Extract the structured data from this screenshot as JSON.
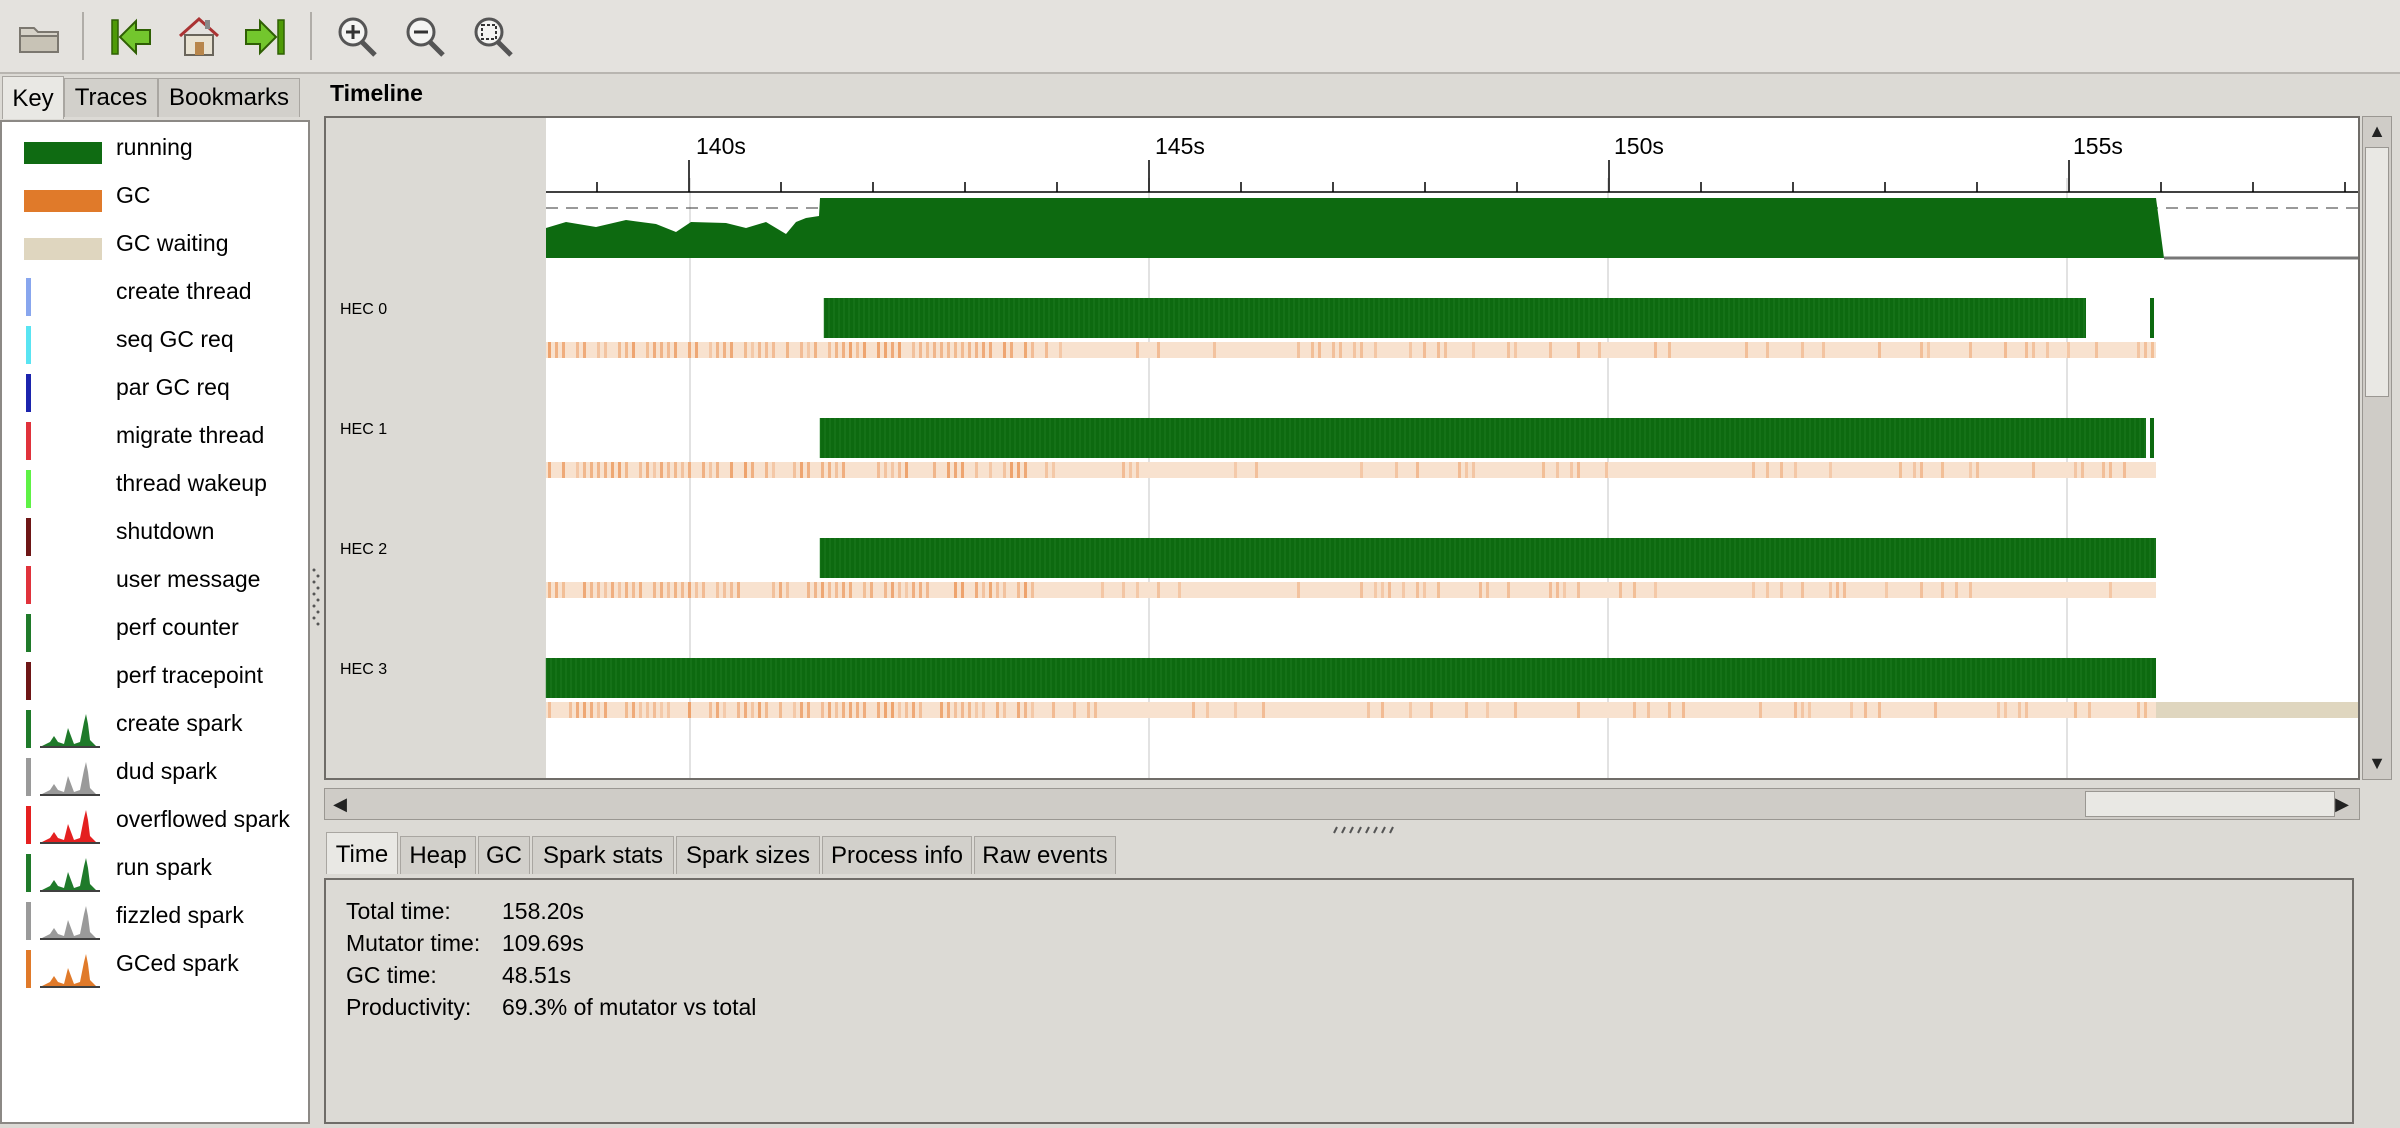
{
  "toolbar": {
    "buttons": [
      {
        "name": "open-file",
        "icon": "folder-icon"
      },
      {
        "name": "jump-start",
        "icon": "jump-start-icon"
      },
      {
        "name": "home",
        "icon": "home-icon"
      },
      {
        "name": "jump-end",
        "icon": "jump-end-icon"
      },
      {
        "name": "zoom-in",
        "icon": "zoom-in-icon"
      },
      {
        "name": "zoom-out",
        "icon": "zoom-out-icon"
      },
      {
        "name": "zoom-fit",
        "icon": "zoom-fit-icon"
      }
    ]
  },
  "left_tabs": [
    "Key",
    "Traces",
    "Bookmarks"
  ],
  "key_items": [
    {
      "label": "running",
      "kind": "swatch",
      "color": "#0f6b12"
    },
    {
      "label": "GC",
      "kind": "swatch",
      "color": "#e07a2a"
    },
    {
      "label": "GC waiting",
      "kind": "swatch",
      "color": "#dfd6bf"
    },
    {
      "label": "create thread",
      "kind": "bar",
      "color": "#88a6ee"
    },
    {
      "label": "seq GC req",
      "kind": "bar",
      "color": "#59e4f2"
    },
    {
      "label": "par GC req",
      "kind": "bar",
      "color": "#1c24ad"
    },
    {
      "label": "migrate thread",
      "kind": "bar",
      "color": "#e0323b"
    },
    {
      "label": "thread wakeup",
      "kind": "bar",
      "color": "#5ef245"
    },
    {
      "label": "shutdown",
      "kind": "bar",
      "color": "#6e1616"
    },
    {
      "label": "user message",
      "kind": "bar",
      "color": "#e0323b"
    },
    {
      "label": "perf counter",
      "kind": "bar",
      "color": "#1f7a2a"
    },
    {
      "label": "perf tracepoint",
      "kind": "bar",
      "color": "#6e1616"
    },
    {
      "label": "create spark",
      "kind": "spark",
      "color": "#1f7a2a"
    },
    {
      "label": "dud spark",
      "kind": "spark",
      "color": "#9a9a9a"
    },
    {
      "label": "overflowed spark",
      "kind": "spark",
      "color": "#e42020"
    },
    {
      "label": "run spark",
      "kind": "spark",
      "color": "#1f7a2a"
    },
    {
      "label": "fizzled spark",
      "kind": "spark",
      "color": "#9a9a9a"
    },
    {
      "label": "GCed spark",
      "kind": "spark",
      "color": "#e07a2a"
    }
  ],
  "timeline": {
    "title": "Timeline",
    "ticks": [
      "140s",
      "145s",
      "150s",
      "155s"
    ],
    "hecs": [
      "HEC 0",
      "HEC 1",
      "HEC 2",
      "HEC 3"
    ],
    "colors": {
      "running": "#0d6a10",
      "gc": "#e8823a",
      "gc_light": "#f8e2cf",
      "gc_waiting": "#dfd6bf"
    }
  },
  "bottom_tabs": [
    "Time",
    "Heap",
    "GC",
    "Spark stats",
    "Spark sizes",
    "Process info",
    "Raw events"
  ],
  "info": [
    {
      "label": "Total time:",
      "value": "158.20s"
    },
    {
      "label": "Mutator time:",
      "value": "109.69s"
    },
    {
      "label": "GC time:",
      "value": "48.51s"
    },
    {
      "label": "Productivity:",
      "value": "69.3% of mutator vs total"
    }
  ]
}
